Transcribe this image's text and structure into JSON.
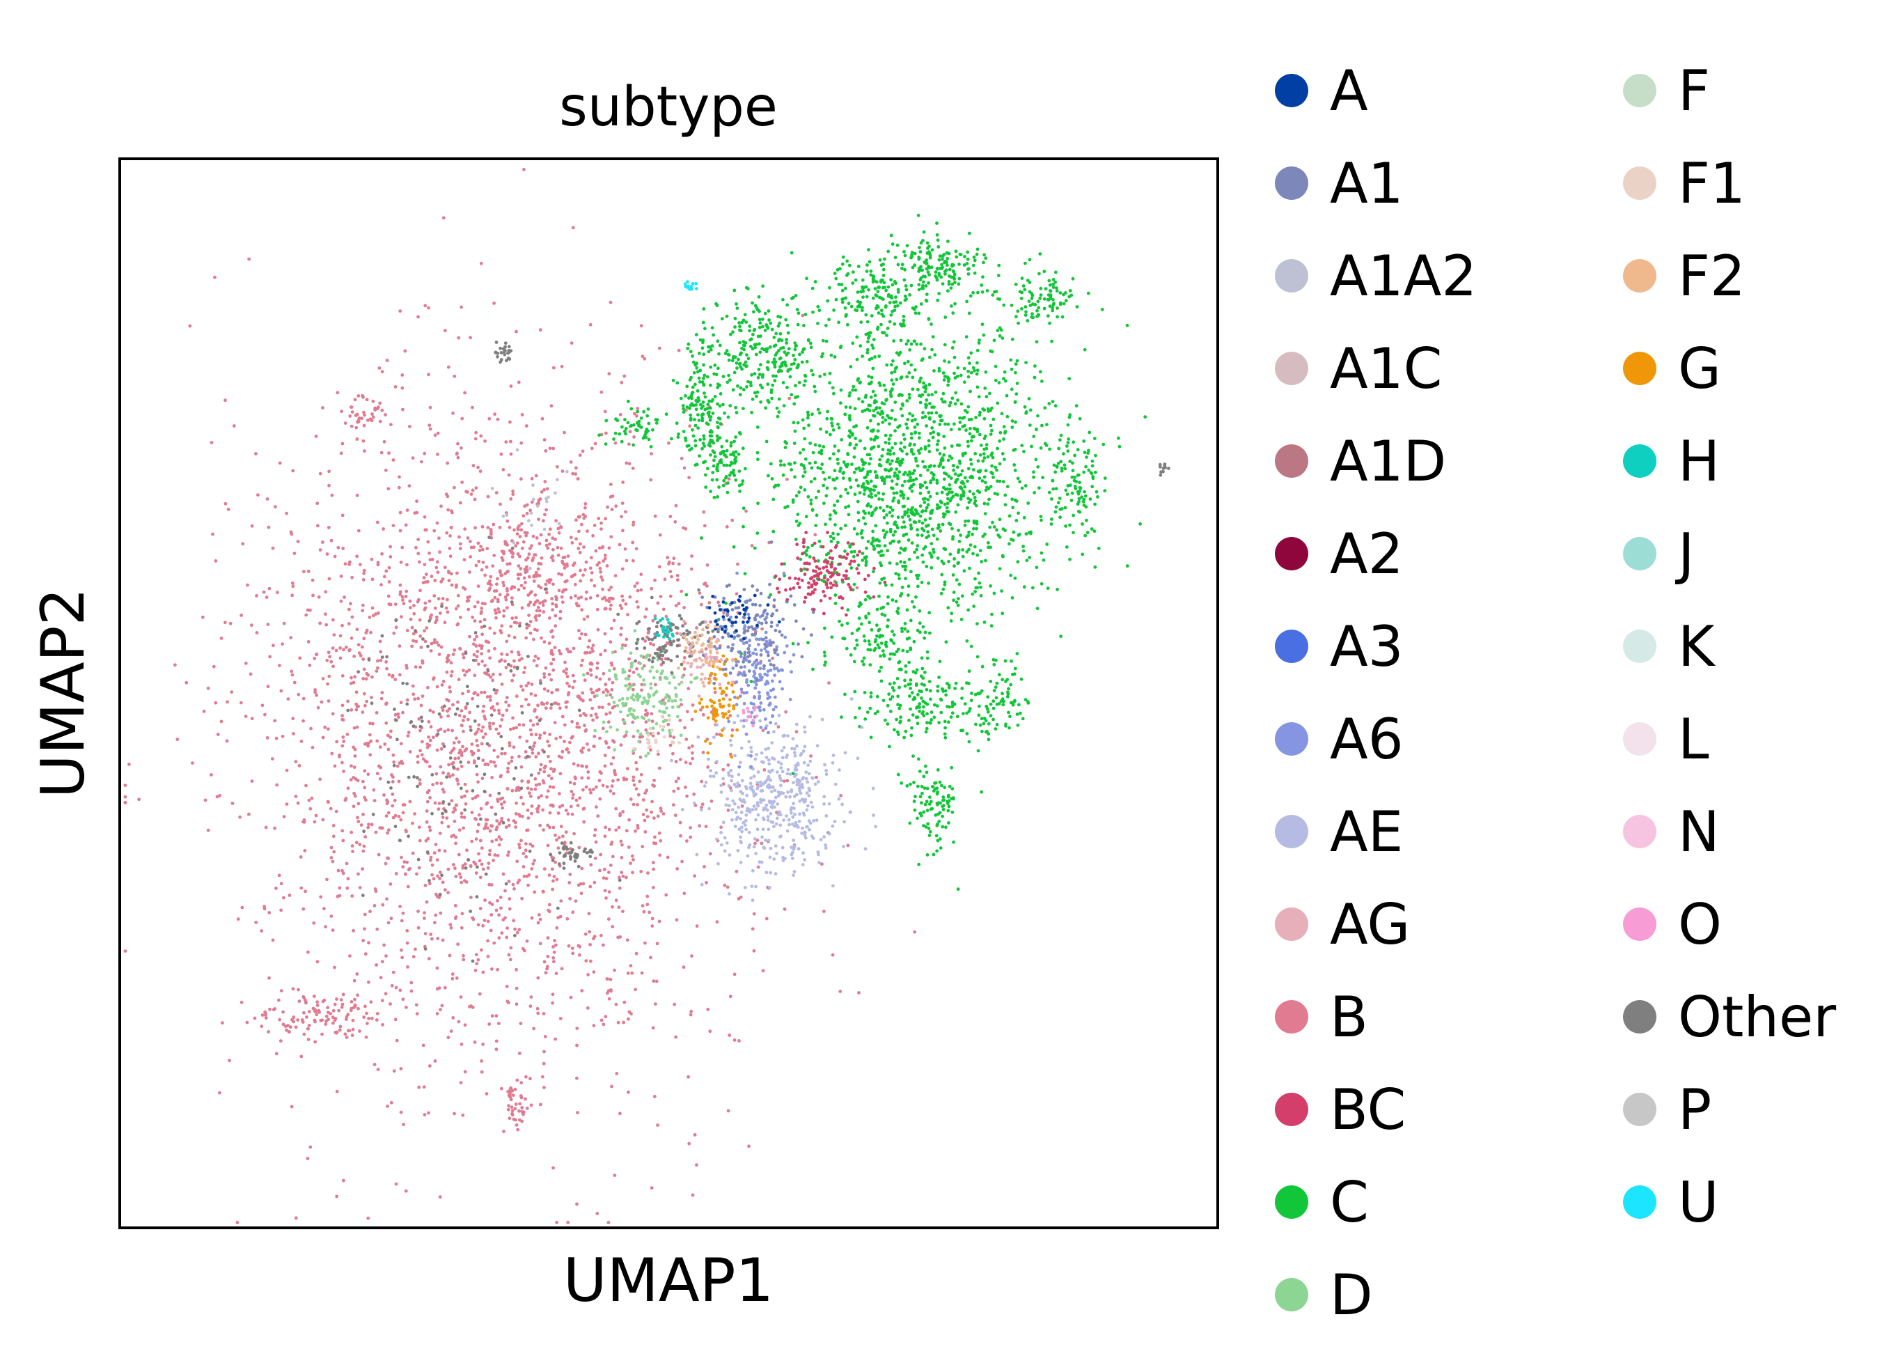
{
  "chart_data": {
    "type": "scatter",
    "title": "subtype",
    "xlabel": "UMAP1",
    "ylabel": "UMAP2",
    "xlim": [
      0,
      10
    ],
    "ylim": [
      0,
      10
    ],
    "x_ticks": false,
    "y_ticks": false,
    "grid": false,
    "legend_position": "right, outside plot, two columns",
    "legend": [
      {
        "label": "A",
        "color": "#023fa5"
      },
      {
        "label": "A1",
        "color": "#7d87b9"
      },
      {
        "label": "A1A2",
        "color": "#bec1d4"
      },
      {
        "label": "A1C",
        "color": "#d6bcc0"
      },
      {
        "label": "A1D",
        "color": "#bb7784"
      },
      {
        "label": "A2",
        "color": "#8e063b"
      },
      {
        "label": "A3",
        "color": "#4a6fe3"
      },
      {
        "label": "A6",
        "color": "#8595e1"
      },
      {
        "label": "AE",
        "color": "#b5bbe3"
      },
      {
        "label": "AG",
        "color": "#e6afb9"
      },
      {
        "label": "B",
        "color": "#e07b91"
      },
      {
        "label": "BC",
        "color": "#d33f6a"
      },
      {
        "label": "C",
        "color": "#11c638"
      },
      {
        "label": "D",
        "color": "#8dd593"
      },
      {
        "label": "F",
        "color": "#c6dec7"
      },
      {
        "label": "F1",
        "color": "#ead3c6"
      },
      {
        "label": "F2",
        "color": "#f0b98d"
      },
      {
        "label": "G",
        "color": "#ef9708"
      },
      {
        "label": "H",
        "color": "#0fcfc0"
      },
      {
        "label": "J",
        "color": "#9cded6"
      },
      {
        "label": "K",
        "color": "#d5eae7"
      },
      {
        "label": "L",
        "color": "#f3e1eb"
      },
      {
        "label": "N",
        "color": "#f6c4e1"
      },
      {
        "label": "O",
        "color": "#f79cd4"
      },
      {
        "label": "Other",
        "color": "#7f7f7f"
      },
      {
        "label": "P",
        "color": "#c7c7c7"
      },
      {
        "label": "U",
        "color": "#1ce6ff"
      }
    ],
    "clusters": [
      {
        "label": "B",
        "cx": 3.5,
        "cy": 4.6,
        "sx": 1.1,
        "sy": 1.5,
        "n": 2600
      },
      {
        "label": "B",
        "cx": 3.8,
        "cy": 6.2,
        "sx": 0.35,
        "sy": 0.3,
        "n": 180
      },
      {
        "label": "B",
        "cx": 1.8,
        "cy": 2.0,
        "sx": 0.28,
        "sy": 0.12,
        "n": 120
      },
      {
        "label": "B",
        "cx": 2.2,
        "cy": 7.6,
        "sx": 0.1,
        "sy": 0.1,
        "n": 40
      },
      {
        "label": "B",
        "cx": 3.6,
        "cy": 1.2,
        "sx": 0.07,
        "sy": 0.1,
        "n": 40
      },
      {
        "label": "C",
        "cx": 7.2,
        "cy": 7.1,
        "sx": 0.65,
        "sy": 0.75,
        "n": 1500
      },
      {
        "label": "C",
        "cx": 5.9,
        "cy": 8.2,
        "sx": 0.25,
        "sy": 0.3,
        "n": 250
      },
      {
        "label": "C",
        "cx": 6.9,
        "cy": 8.7,
        "sx": 0.25,
        "sy": 0.2,
        "n": 160
      },
      {
        "label": "C",
        "cx": 7.5,
        "cy": 9.0,
        "sx": 0.25,
        "sy": 0.15,
        "n": 140
      },
      {
        "label": "C",
        "cx": 8.4,
        "cy": 8.7,
        "sx": 0.15,
        "sy": 0.12,
        "n": 80
      },
      {
        "label": "C",
        "cx": 5.3,
        "cy": 7.7,
        "sx": 0.12,
        "sy": 0.3,
        "n": 150
      },
      {
        "label": "C",
        "cx": 5.5,
        "cy": 7.2,
        "sx": 0.1,
        "sy": 0.15,
        "n": 80
      },
      {
        "label": "C",
        "cx": 8.7,
        "cy": 7.0,
        "sx": 0.15,
        "sy": 0.25,
        "n": 100
      },
      {
        "label": "C",
        "cx": 7.3,
        "cy": 4.9,
        "sx": 0.3,
        "sy": 0.2,
        "n": 160
      },
      {
        "label": "C",
        "cx": 7.4,
        "cy": 4.0,
        "sx": 0.12,
        "sy": 0.25,
        "n": 100
      },
      {
        "label": "C",
        "cx": 8.0,
        "cy": 4.9,
        "sx": 0.15,
        "sy": 0.15,
        "n": 70
      },
      {
        "label": "C",
        "cx": 4.7,
        "cy": 7.5,
        "sx": 0.12,
        "sy": 0.1,
        "n": 50
      },
      {
        "label": "C",
        "cx": 6.9,
        "cy": 5.5,
        "sx": 0.2,
        "sy": 0.15,
        "n": 80
      },
      {
        "label": "AE",
        "cx": 5.95,
        "cy": 4.05,
        "sx": 0.3,
        "sy": 0.35,
        "n": 420
      },
      {
        "label": "A6",
        "cx": 5.8,
        "cy": 5.2,
        "sx": 0.15,
        "sy": 0.3,
        "n": 160
      },
      {
        "label": "A1",
        "cx": 5.7,
        "cy": 5.6,
        "sx": 0.25,
        "sy": 0.25,
        "n": 150
      },
      {
        "label": "A",
        "cx": 5.6,
        "cy": 5.7,
        "sx": 0.15,
        "sy": 0.12,
        "n": 40
      },
      {
        "label": "BC",
        "cx": 6.4,
        "cy": 6.1,
        "sx": 0.2,
        "sy": 0.15,
        "n": 130
      },
      {
        "label": "D",
        "cx": 4.8,
        "cy": 5.0,
        "sx": 0.2,
        "sy": 0.22,
        "n": 150
      },
      {
        "label": "Other",
        "cx": 5.0,
        "cy": 5.5,
        "sx": 0.15,
        "sy": 0.12,
        "n": 90
      },
      {
        "label": "Other",
        "cx": 3.2,
        "cy": 4.4,
        "sx": 0.5,
        "sy": 0.8,
        "n": 120
      },
      {
        "label": "Other",
        "cx": 4.1,
        "cy": 3.5,
        "sx": 0.1,
        "sy": 0.05,
        "n": 40
      },
      {
        "label": "Other",
        "cx": 3.5,
        "cy": 8.2,
        "sx": 0.05,
        "sy": 0.05,
        "n": 25
      },
      {
        "label": "Other",
        "cx": 9.5,
        "cy": 7.1,
        "sx": 0.04,
        "sy": 0.03,
        "n": 10
      },
      {
        "label": "G",
        "cx": 5.45,
        "cy": 4.9,
        "sx": 0.08,
        "sy": 0.2,
        "n": 70
      },
      {
        "label": "F2",
        "cx": 5.3,
        "cy": 5.4,
        "sx": 0.1,
        "sy": 0.12,
        "n": 50
      },
      {
        "label": "H",
        "cx": 4.95,
        "cy": 5.6,
        "sx": 0.05,
        "sy": 0.05,
        "n": 20
      },
      {
        "label": "AG",
        "cx": 5.3,
        "cy": 5.3,
        "sx": 0.12,
        "sy": 0.15,
        "n": 40
      },
      {
        "label": "A1A2",
        "cx": 3.7,
        "cy": 6.7,
        "sx": 0.3,
        "sy": 0.3,
        "n": 20
      },
      {
        "label": "F1",
        "cx": 4.9,
        "cy": 4.6,
        "sx": 0.1,
        "sy": 0.08,
        "n": 20
      },
      {
        "label": "O",
        "cx": 5.75,
        "cy": 4.8,
        "sx": 0.04,
        "sy": 0.04,
        "n": 12
      },
      {
        "label": "U",
        "cx": 5.2,
        "cy": 8.8,
        "sx": 0.03,
        "sy": 0.03,
        "n": 12
      }
    ]
  }
}
